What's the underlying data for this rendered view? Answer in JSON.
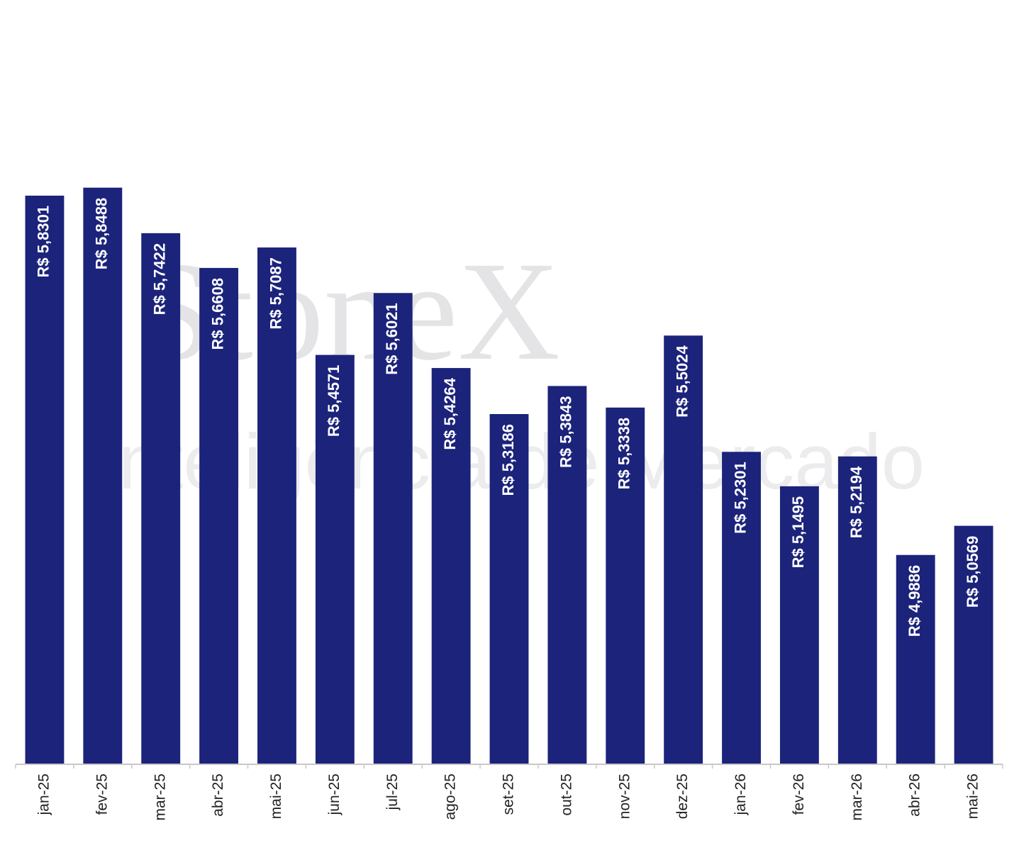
{
  "chart_data": {
    "type": "bar",
    "watermark": [
      "StoneX",
      "Inteligência de Mercado"
    ],
    "categories": [
      "jan-25",
      "fev-25",
      "mar-25",
      "abr-25",
      "mai-25",
      "jun-25",
      "jul-25",
      "ago-25",
      "set-25",
      "out-25",
      "nov-25",
      "dez-25",
      "jan-26",
      "fev-26",
      "mar-26",
      "abr-26",
      "mai-26"
    ],
    "values": [
      5.8301,
      5.8488,
      5.7422,
      5.6608,
      5.7087,
      5.4571,
      5.6021,
      5.4264,
      5.3186,
      5.3843,
      5.3338,
      5.5024,
      5.2301,
      5.1495,
      5.2194,
      4.9886,
      5.0569
    ],
    "value_labels": [
      "R$ 5,8301",
      "R$ 5,8488",
      "R$ 5,7422",
      "R$ 5,6608",
      "R$ 5,7087",
      "R$ 5,4571",
      "R$ 5,6021",
      "R$ 5,4264",
      "R$ 5,3186",
      "R$ 5,3843",
      "R$ 5,3338",
      "R$ 5,5024",
      "R$ 5,2301",
      "R$ 5,1495",
      "R$ 5,2194",
      "R$ 4,9886",
      "R$ 5,0569"
    ],
    "color": "#1b237b",
    "ylim": [
      4.5,
      6.28
    ]
  }
}
